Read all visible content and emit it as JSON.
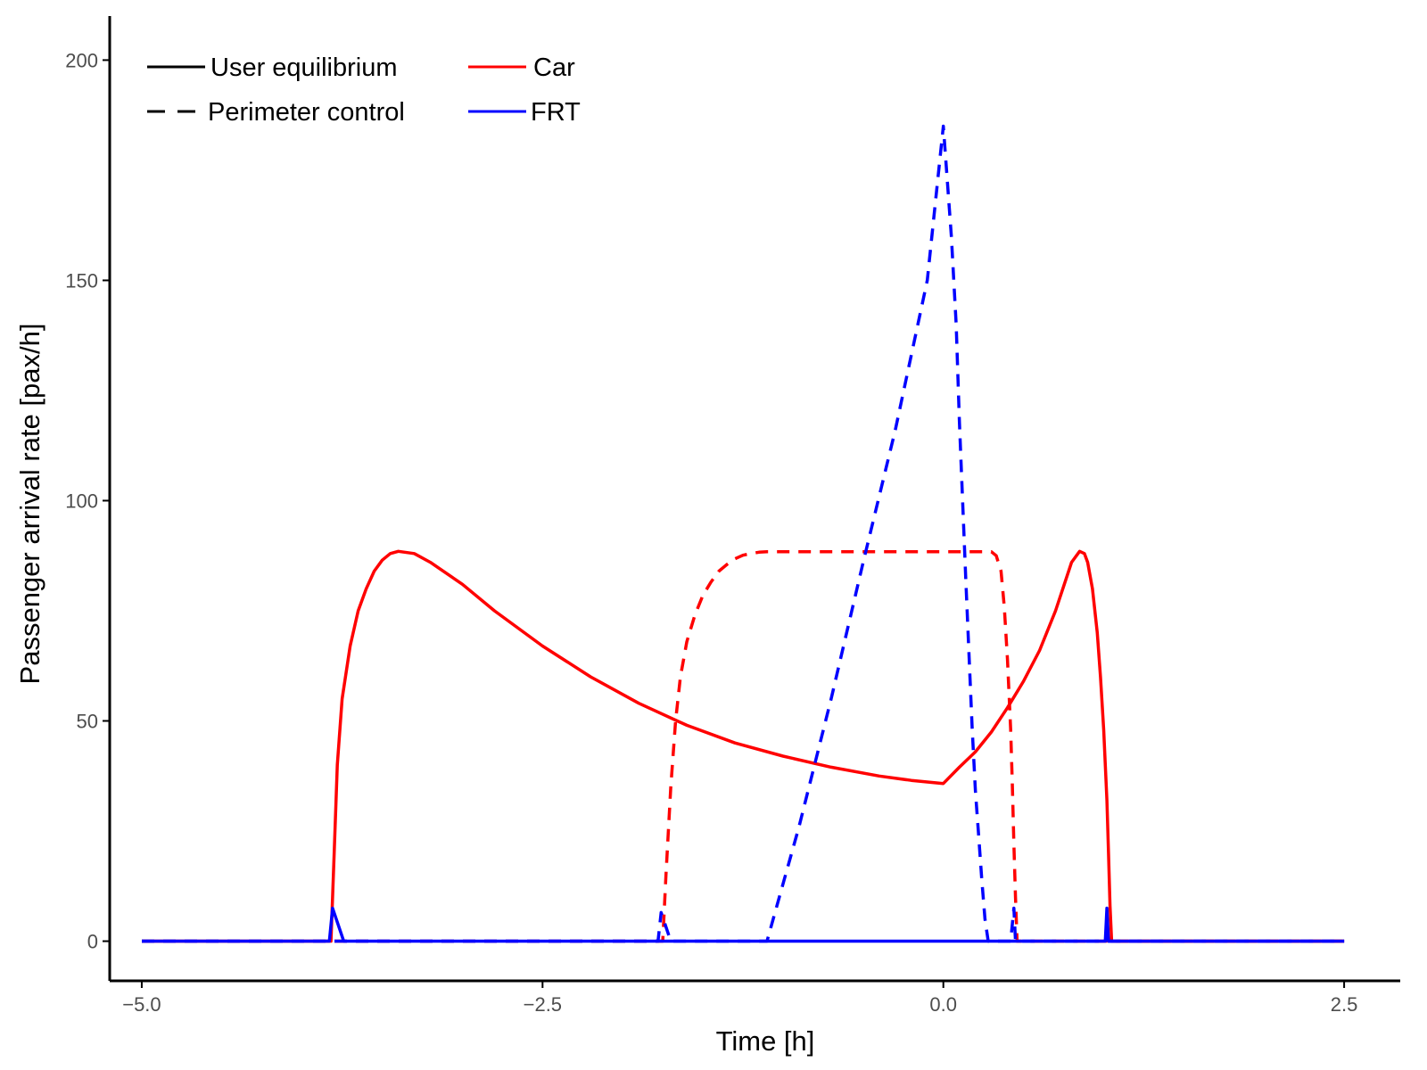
{
  "chart_data": {
    "type": "line",
    "xlabel": "Time [h]",
    "ylabel": "Passenger arrival rate [pax/h]",
    "xlim": [
      -5.2,
      2.85
    ],
    "ylim": [
      -9,
      210
    ],
    "xticks": [
      -5.0,
      -2.5,
      0.0,
      2.5
    ],
    "xtick_labels": [
      "−5.0",
      "−2.5",
      "0.0",
      "2.5"
    ],
    "yticks": [
      0,
      50,
      100,
      150,
      200
    ],
    "ytick_labels": [
      "0",
      "50",
      "100",
      "150",
      "200"
    ],
    "grid": false,
    "legend": {
      "placement": "top-left",
      "linetype": [
        {
          "label": "User equilibrium",
          "style": "solid"
        },
        {
          "label": "Perimeter control",
          "style": "dashed"
        }
      ],
      "mode": [
        {
          "label": "Car",
          "color": "#ff0000"
        },
        {
          "label": "FRT",
          "color": "#0000ff"
        }
      ]
    },
    "series": [
      {
        "mode": "Car",
        "scenario": "User equilibrium",
        "color": "#ff0000",
        "style": "solid",
        "x": [
          -5.0,
          -3.82,
          -3.8,
          -3.78,
          -3.75,
          -3.7,
          -3.65,
          -3.6,
          -3.55,
          -3.5,
          -3.45,
          -3.4,
          -3.3,
          -3.2,
          -3.0,
          -2.8,
          -2.5,
          -2.2,
          -1.9,
          -1.6,
          -1.3,
          -1.0,
          -0.7,
          -0.4,
          -0.2,
          0.0,
          0.1,
          0.2,
          0.3,
          0.4,
          0.5,
          0.6,
          0.7,
          0.75,
          0.8,
          0.85,
          0.88,
          0.9,
          0.93,
          0.96,
          0.98,
          1.0,
          1.02,
          1.03,
          1.04,
          1.05,
          2.5
        ],
        "y": [
          0,
          0,
          20,
          40,
          55,
          67,
          75,
          80,
          84,
          86.5,
          88,
          88.5,
          88,
          86,
          81,
          75,
          67,
          60,
          54,
          49,
          45,
          42,
          39.5,
          37.5,
          36.5,
          35.8,
          39.5,
          43,
          47.5,
          53,
          59,
          66,
          75,
          80.5,
          86,
          88.5,
          88,
          86,
          80,
          70,
          60,
          48,
          32,
          20,
          8,
          0,
          0
        ]
      },
      {
        "mode": "Car",
        "scenario": "Perimeter control",
        "color": "#ff0000",
        "style": "dashed",
        "x": [
          -5.0,
          -1.75,
          -1.73,
          -1.7,
          -1.67,
          -1.64,
          -1.6,
          -1.55,
          -1.5,
          -1.45,
          -1.4,
          -1.35,
          -1.3,
          -1.25,
          -1.2,
          -1.15,
          -1.1,
          -1.0,
          0.0,
          0.3,
          0.33,
          0.36,
          0.38,
          0.4,
          0.42,
          0.43,
          0.44,
          0.45,
          0.46,
          2.5
        ],
        "y": [
          0,
          0,
          15,
          35,
          50,
          60,
          68,
          74,
          78.5,
          81.5,
          84,
          85.5,
          86.8,
          87.6,
          88,
          88.3,
          88.4,
          88.4,
          88.4,
          88.4,
          87.5,
          84,
          76,
          64,
          48,
          36,
          22,
          10,
          0,
          0
        ]
      },
      {
        "mode": "FRT",
        "scenario": "User equilibrium",
        "color": "#0000ff",
        "style": "solid",
        "x": [
          -5.0,
          -3.83,
          -3.81,
          -3.74,
          -3.72,
          1.0,
          1.01,
          1.02,
          1.03,
          2.5
        ],
        "y": [
          0,
          0,
          7.5,
          0,
          0,
          0,
          0,
          7.5,
          0,
          0
        ]
      },
      {
        "mode": "FRT",
        "scenario": "Perimeter control",
        "color": "#0000ff",
        "style": "dashed",
        "x": [
          -5.0,
          -1.78,
          -1.76,
          -1.7,
          -1.68,
          -1.1,
          -0.9,
          -0.7,
          -0.5,
          -0.3,
          -0.1,
          0.0,
          0.05,
          0.08,
          0.1,
          0.12,
          0.14,
          0.16,
          0.18,
          0.2,
          0.22,
          0.24,
          0.26,
          0.28,
          0.42,
          0.44,
          0.45,
          0.46,
          2.5
        ],
        "y": [
          0,
          0,
          6.5,
          0,
          0,
          0,
          26,
          55,
          86,
          116,
          150,
          185,
          160,
          140,
          118,
          100,
          82,
          65,
          48,
          34,
          24,
          14,
          5,
          0,
          0,
          7.5,
          0,
          0,
          0
        ]
      }
    ]
  }
}
